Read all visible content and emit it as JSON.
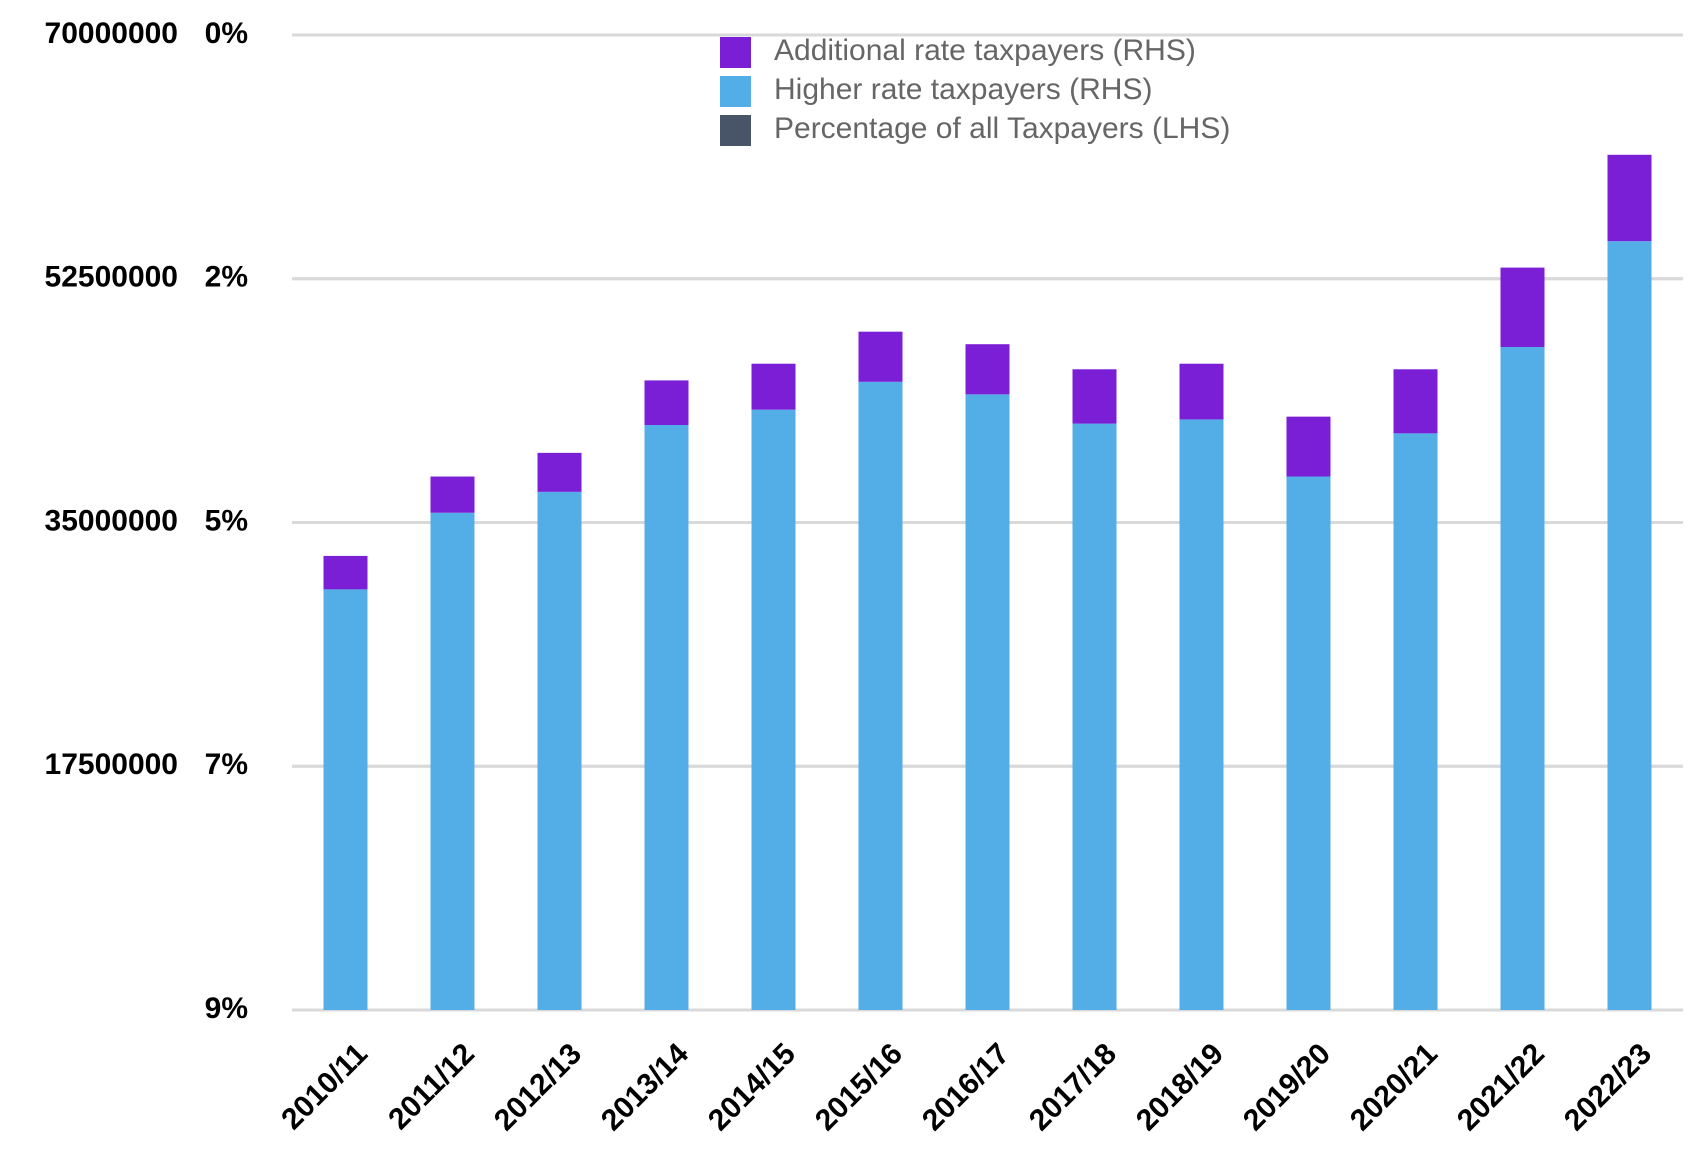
{
  "chart_data": {
    "type": "bar",
    "stacked": true,
    "categories": [
      "2010/11",
      "2011/12",
      "2012/13",
      "2013/14",
      "2014/15",
      "2015/16",
      "2016/17",
      "2017/18",
      "2018/19",
      "2019/20",
      "2020/21",
      "2021/22",
      "2022/23"
    ],
    "series": [
      {
        "name": "Higher rate taxpayers (RHS)",
        "color": "#53aee8",
        "values": [
          30200000,
          35700000,
          37200000,
          42000000,
          43100000,
          45100000,
          44200000,
          42100000,
          42400000,
          38300000,
          41400000,
          47600000,
          55200000
        ]
      },
      {
        "name": "Additional rate taxpayers (RHS)",
        "color": "#7b1fd6",
        "values": [
          2400000,
          2600000,
          2800000,
          3200000,
          3300000,
          3600000,
          3600000,
          3900000,
          4000000,
          4300000,
          4600000,
          5700000,
          6200000
        ]
      },
      {
        "name": "Percentage of all Taxpayers (LHS)",
        "color": "#485467",
        "axis": "y2",
        "values": [
          null,
          null,
          null,
          null,
          null,
          null,
          null,
          null,
          null,
          null,
          null,
          null,
          null
        ]
      }
    ],
    "ylim": [
      0,
      70000000
    ],
    "yticks": [
      17500000,
      35000000,
      52500000,
      70000000
    ],
    "y2lim": [
      9,
      0
    ],
    "y2ticks": [
      {
        "value": 0,
        "label": "0%"
      },
      {
        "value": 2.25,
        "label": "2%"
      },
      {
        "value": 4.5,
        "label": "5%"
      },
      {
        "value": 6.75,
        "label": "7%"
      },
      {
        "value": 9,
        "label": "9%"
      }
    ],
    "grid": true,
    "legend": "top"
  }
}
